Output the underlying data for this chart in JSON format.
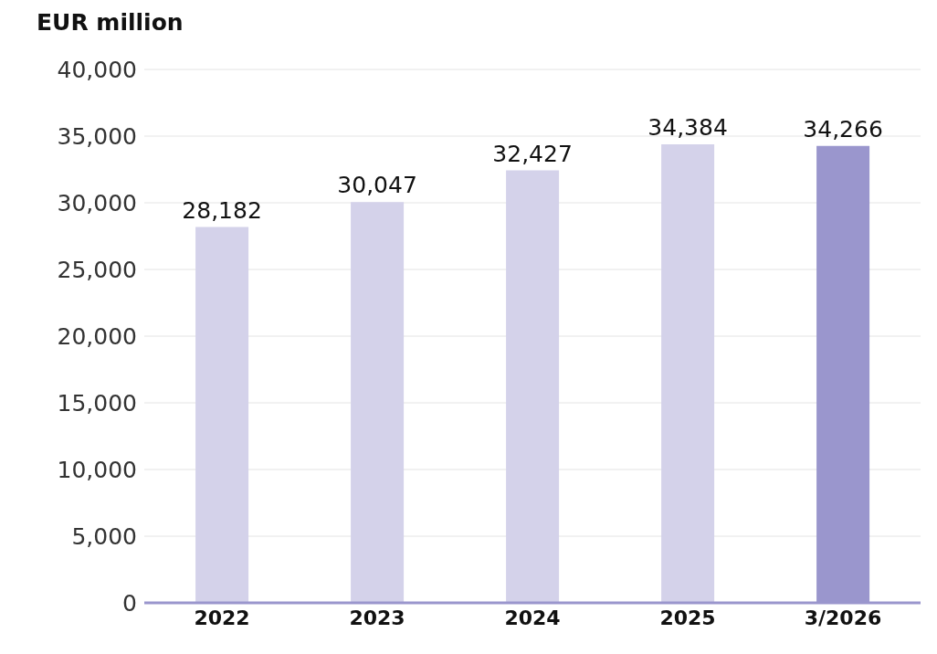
{
  "chart_data": {
    "type": "bar",
    "ylabel": "EUR million",
    "categories": [
      "2022",
      "2023",
      "2024",
      "2025",
      "3/2026"
    ],
    "values": [
      28182,
      30047,
      32427,
      34384,
      34266
    ],
    "value_labels": [
      "28,182",
      "30,047",
      "32,427",
      "34,384",
      "34,266"
    ],
    "colors": [
      "#d4d2ea",
      "#d4d2ea",
      "#d4d2ea",
      "#d4d2ea",
      "#9a96cd"
    ],
    "ylim": [
      0,
      40000
    ],
    "yticks": [
      {
        "value": 0,
        "label": "0"
      },
      {
        "value": 5000,
        "label": "5,000"
      },
      {
        "value": 10000,
        "label": "10,000"
      },
      {
        "value": 15000,
        "label": "15,000"
      },
      {
        "value": 20000,
        "label": "20,000"
      },
      {
        "value": 25000,
        "label": "25,000"
      },
      {
        "value": 30000,
        "label": "30,000"
      },
      {
        "value": 35000,
        "label": "35,000"
      },
      {
        "value": 40000,
        "label": "40,000"
      }
    ],
    "grid": "y"
  }
}
